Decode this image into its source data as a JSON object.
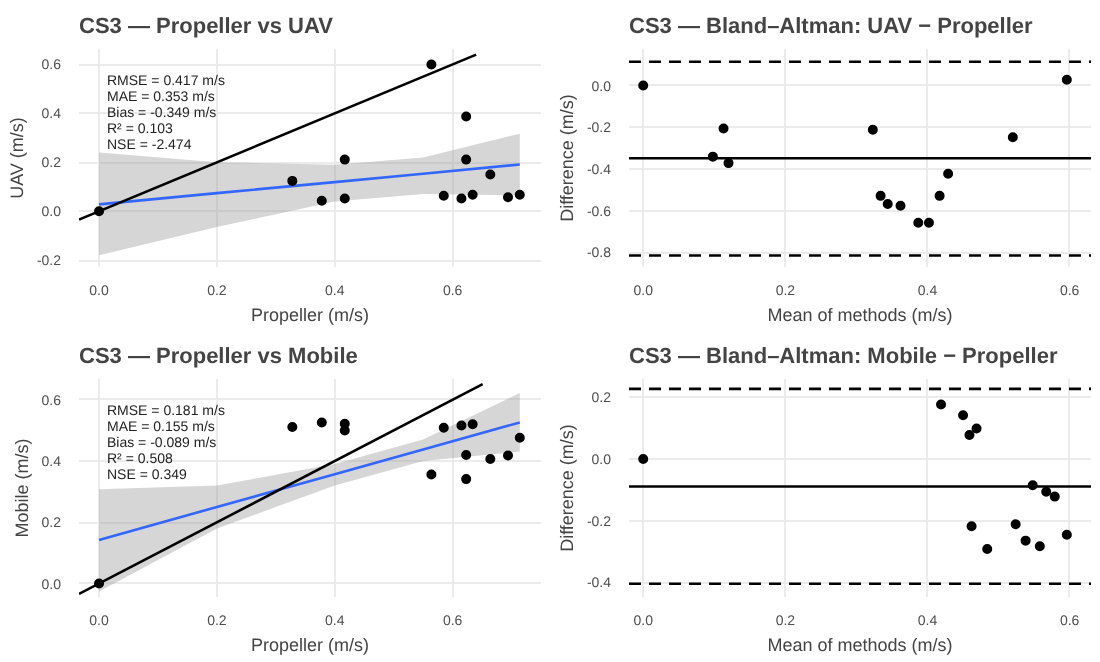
{
  "chart_data": [
    {
      "type": "scatter",
      "title": "CS3 — Propeller vs UAV",
      "xlabel": "Propeller (m/s)",
      "ylabel": "UAV (m/s)",
      "grid": true,
      "xlim": [
        -0.034,
        0.75
      ],
      "ylim": [
        -0.228,
        0.663
      ],
      "xticks": [
        {
          "value": 0,
          "label": "0.0"
        },
        {
          "value": 0.2,
          "label": "0.2"
        },
        {
          "value": 0.4,
          "label": "0.4"
        },
        {
          "value": 0.6,
          "label": "0.6"
        }
      ],
      "yticks": [
        {
          "value": -0.2,
          "label": "-0.2"
        },
        {
          "value": 0,
          "label": "0.0"
        },
        {
          "value": 0.2,
          "label": "0.2"
        },
        {
          "value": 0.4,
          "label": "0.4"
        },
        {
          "value": 0.6,
          "label": "0.6"
        }
      ],
      "annotations": [
        "RMSE = 0.417 m/s",
        "MAE  = 0.353 m/s",
        "Bias = -0.349 m/s",
        "R² = 0.103",
        "NSE  = -2.474"
      ],
      "series": [
        {
          "type": "line",
          "color": "#3366ff",
          "x": [
            0,
            0.2,
            0.4,
            0.55,
            0.714
          ],
          "values": [
            0.028,
            0.074,
            0.119,
            0.153,
            0.191
          ],
          "lower": [
            -0.18,
            -0.065,
            0.04,
            0.07,
            0.065
          ],
          "upper": [
            0.24,
            0.2,
            0.19,
            0.22,
            0.317
          ]
        },
        {
          "type": "line",
          "color": "#000000",
          "x": [
            -0.034,
            0.64
          ],
          "values": [
            -0.034,
            0.64
          ]
        },
        {
          "marker": "circle",
          "color": "#000000",
          "x": [
            0,
            0.328,
            0.378,
            0.417,
            0.417,
            0.564,
            0.585,
            0.615,
            0.623,
            0.623,
            0.634,
            0.664,
            0.694,
            0.714
          ],
          "values": [
            0,
            0.124,
            0.043,
            0.211,
            0.052,
            0.6,
            0.063,
            0.052,
            0.387,
            0.211,
            0.067,
            0.15,
            0.057,
            0.067
          ]
        }
      ]
    },
    {
      "type": "scatter",
      "title": "CS3 — Bland–Altman: UAV − Propeller",
      "xlabel": "Mean of methods (m/s)",
      "ylabel": "Difference (m/s)",
      "grid": true,
      "xlim": [
        -0.02,
        0.63
      ],
      "ylim": [
        -0.87,
        0.175
      ],
      "xticks": [
        {
          "value": 0,
          "label": "0.0"
        },
        {
          "value": 0.2,
          "label": "0.2"
        },
        {
          "value": 0.4,
          "label": "0.4"
        },
        {
          "value": 0.6,
          "label": "0.6"
        }
      ],
      "yticks": [
        {
          "value": 0,
          "label": "0.0"
        },
        {
          "value": -0.2,
          "label": "-0.2"
        },
        {
          "value": -0.4,
          "label": "-0.4"
        },
        {
          "value": -0.6,
          "label": "-0.6"
        },
        {
          "value": -0.8,
          "label": "-0.8"
        }
      ],
      "ref_lines": [
        {
          "axis": "y",
          "value": -0.349,
          "label": null,
          "color": "#000000",
          "line_style": "solid"
        },
        {
          "axis": "y",
          "value": 0.114,
          "label": null,
          "color": "#000000",
          "line_style": "dashed"
        },
        {
          "axis": "y",
          "value": -0.815,
          "label": null,
          "color": "#000000",
          "line_style": "dashed"
        }
      ],
      "series": [
        {
          "marker": "circle",
          "color": "#000000",
          "x": [
            0,
            0.098,
            0.113,
            0.12,
            0.323,
            0.334,
            0.344,
            0.362,
            0.387,
            0.402,
            0.417,
            0.429,
            0.52,
            0.596
          ],
          "values": [
            0,
            -0.341,
            -0.206,
            -0.372,
            -0.212,
            -0.529,
            -0.568,
            -0.576,
            -0.658,
            -0.658,
            -0.529,
            -0.423,
            -0.248,
            0.028
          ]
        }
      ]
    },
    {
      "type": "scatter",
      "title": "CS3 — Propeller vs Mobile",
      "xlabel": "Propeller (m/s)",
      "ylabel": "Mobile (m/s)",
      "grid": true,
      "xlim": [
        -0.034,
        0.75
      ],
      "ylim": [
        -0.044,
        0.668
      ],
      "xticks": [
        {
          "value": 0,
          "label": "0.0"
        },
        {
          "value": 0.2,
          "label": "0.2"
        },
        {
          "value": 0.4,
          "label": "0.4"
        },
        {
          "value": 0.6,
          "label": "0.6"
        }
      ],
      "yticks": [
        {
          "value": 0,
          "label": "0.0"
        },
        {
          "value": 0.2,
          "label": "0.2"
        },
        {
          "value": 0.4,
          "label": "0.4"
        },
        {
          "value": 0.6,
          "label": "0.6"
        }
      ],
      "annotations": [
        "RMSE = 0.181 m/s",
        "MAE  = 0.155 m/s",
        "Bias = -0.089 m/s",
        "R² = 0.508",
        "NSE  = 0.349"
      ],
      "series": [
        {
          "type": "line",
          "color": "#3366ff",
          "x": [
            0,
            0.2,
            0.4,
            0.55,
            0.714
          ],
          "values": [
            0.142,
            0.25,
            0.357,
            0.438,
            0.526
          ],
          "lower": [
            -0.026,
            0.18,
            0.32,
            0.4,
            0.431
          ],
          "upper": [
            0.308,
            0.32,
            0.39,
            0.47,
            0.622
          ]
        },
        {
          "type": "line",
          "color": "#000000",
          "x": [
            -0.034,
            0.651
          ],
          "values": [
            -0.034,
            0.651
          ]
        },
        {
          "marker": "circle",
          "color": "#000000",
          "x": [
            0,
            0.328,
            0.378,
            0.417,
            0.417,
            0.564,
            0.585,
            0.615,
            0.623,
            0.623,
            0.634,
            0.664,
            0.694,
            0.714
          ],
          "values": [
            0,
            0.511,
            0.526,
            0.522,
            0.5,
            0.356,
            0.509,
            0.516,
            0.42,
            0.341,
            0.52,
            0.407,
            0.418,
            0.476
          ]
        }
      ]
    },
    {
      "type": "scatter",
      "title": "CS3 — Bland–Altman: Mobile − Propeller",
      "xlabel": "Mean of methods (m/s)",
      "ylabel": "Difference (m/s)",
      "grid": true,
      "xlim": [
        -0.02,
        0.63
      ],
      "ylim": [
        -0.448,
        0.26
      ],
      "xticks": [
        {
          "value": 0,
          "label": "0.0"
        },
        {
          "value": 0.2,
          "label": "0.2"
        },
        {
          "value": 0.4,
          "label": "0.4"
        },
        {
          "value": 0.6,
          "label": "0.6"
        }
      ],
      "yticks": [
        {
          "value": 0.2,
          "label": "0.2"
        },
        {
          "value": 0,
          "label": "0.0"
        },
        {
          "value": -0.2,
          "label": "-0.2"
        },
        {
          "value": -0.4,
          "label": "-0.4"
        }
      ],
      "ref_lines": [
        {
          "axis": "y",
          "value": -0.089,
          "label": null,
          "color": "#000000",
          "line_style": "solid"
        },
        {
          "axis": "y",
          "value": 0.228,
          "label": null,
          "color": "#000000",
          "line_style": "dashed"
        },
        {
          "axis": "y",
          "value": -0.405,
          "label": null,
          "color": "#000000",
          "line_style": "dashed"
        }
      ],
      "series": [
        {
          "marker": "circle",
          "color": "#000000",
          "x": [
            0,
            0.419,
            0.45,
            0.459,
            0.469,
            0.462,
            0.484,
            0.524,
            0.538,
            0.548,
            0.558,
            0.567,
            0.579,
            0.596
          ],
          "values": [
            0,
            0.177,
            0.142,
            0.078,
            0.099,
            -0.218,
            -0.292,
            -0.212,
            -0.265,
            -0.085,
            -0.283,
            -0.106,
            -0.122,
            -0.246
          ]
        }
      ]
    }
  ]
}
